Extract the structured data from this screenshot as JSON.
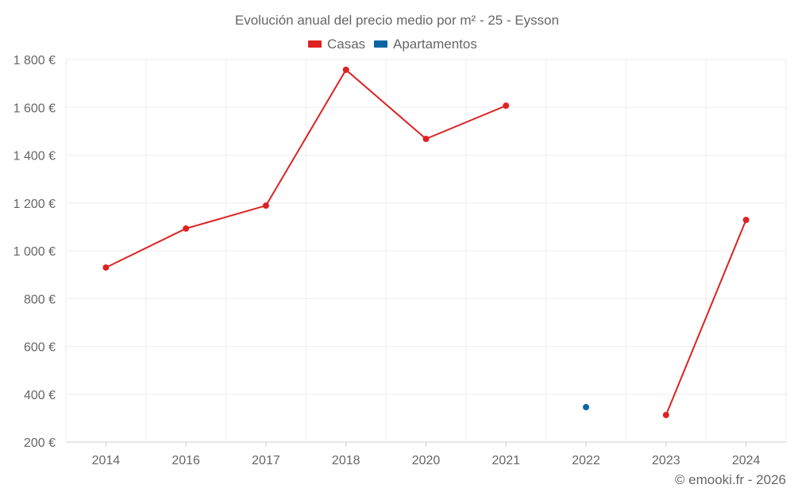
{
  "chart_data": {
    "type": "line",
    "title": "Evolución anual del precio medio por m² - 25 - Eysson",
    "categories": [
      "2014",
      "2016",
      "2017",
      "2018",
      "2020",
      "2021",
      "2022",
      "2023",
      "2024"
    ],
    "series": [
      {
        "name": "Casas",
        "color": "#dd2222",
        "values": [
          930,
          1093,
          1189,
          1757,
          1468,
          1607,
          null,
          313,
          1129
        ]
      },
      {
        "name": "Apartamentos",
        "color": "#0a66a3",
        "values": [
          null,
          null,
          null,
          null,
          null,
          null,
          346,
          null,
          null
        ]
      }
    ],
    "yticks": [
      "200 €",
      "400 €",
      "600 €",
      "800 €",
      "1 000 €",
      "1 200 €",
      "1 400 €",
      "1 600 €",
      "1 800 €"
    ],
    "ylim": [
      200,
      1800
    ],
    "grid": true,
    "legend": "top-center",
    "xlabel": "",
    "ylabel": ""
  },
  "footer": "© emooki.fr - 2026"
}
